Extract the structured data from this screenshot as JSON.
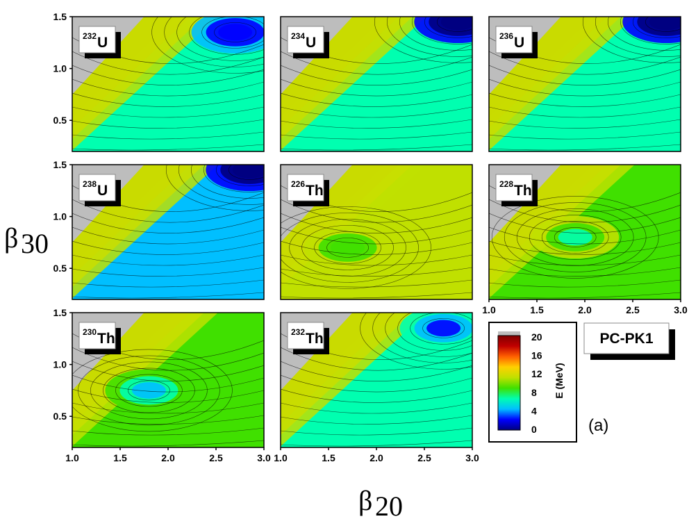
{
  "chart_data": {
    "type": "heatmap",
    "description_kind": "potential energy surfaces",
    "model_label": "PC-PK1",
    "panel_tag": "(a)",
    "x_axis": {
      "label_base": "β",
      "label_sub": "20",
      "range": [
        1.0,
        3.0
      ],
      "ticks": [
        "1.0",
        "1.5",
        "2.0",
        "2.5",
        "3.0"
      ]
    },
    "y_axis": {
      "label_base": "β",
      "label_sub": "30",
      "range": [
        0.2,
        1.5
      ],
      "ticks": [
        "0.5",
        "1.0",
        "1.5"
      ]
    },
    "colorbar": {
      "label": "E (MeV)",
      "range": [
        0,
        20
      ],
      "ticks": [
        "20",
        "16",
        "12",
        "8",
        "4",
        "0"
      ],
      "over_color": "#bdbdbd",
      "colors": [
        "#000080",
        "#0000ff",
        "#00bfff",
        "#00ffb0",
        "#40e000",
        "#c0e000",
        "#ffd000",
        "#ff6000",
        "#c00000",
        "#800000"
      ]
    },
    "panels": [
      {
        "mass": "232",
        "element": "U",
        "row": 0,
        "col": 0,
        "center_energy": 7,
        "min": [
          2.7,
          1.35
        ],
        "min_energy": 2
      },
      {
        "mass": "234",
        "element": "U",
        "row": 0,
        "col": 1,
        "center_energy": 6,
        "min": [
          2.85,
          1.45
        ],
        "min_energy": 0
      },
      {
        "mass": "236",
        "element": "U",
        "row": 0,
        "col": 2,
        "center_energy": 6,
        "min": [
          2.85,
          1.45
        ],
        "min_energy": 0
      },
      {
        "mass": "238",
        "element": "U",
        "row": 1,
        "col": 0,
        "center_energy": 5,
        "min": [
          2.85,
          1.45
        ],
        "min_energy": 0
      },
      {
        "mass": "226",
        "element": "Th",
        "row": 1,
        "col": 1,
        "center_energy": 10,
        "min": [
          1.7,
          0.7
        ],
        "min_energy": 8
      },
      {
        "mass": "228",
        "element": "Th",
        "row": 1,
        "col": 2,
        "center_energy": 9,
        "min": [
          1.9,
          0.8
        ],
        "min_energy": 7
      },
      {
        "mass": "230",
        "element": "Th",
        "row": 2,
        "col": 0,
        "center_energy": 8,
        "min": [
          1.8,
          0.75
        ],
        "min_energy": 5
      },
      {
        "mass": "232",
        "element": "Th",
        "row": 2,
        "col": 1,
        "center_energy": 7,
        "min": [
          2.7,
          1.35
        ],
        "min_energy": 3
      }
    ]
  }
}
